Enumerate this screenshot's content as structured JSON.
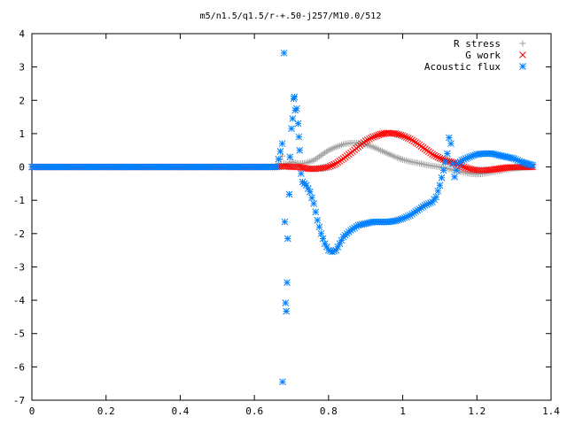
{
  "chart_data": {
    "type": "scatter",
    "title": "m5/n1.5/q1.5/r-+.50-j257/M10.0/512",
    "xlabel": "",
    "ylabel": "",
    "xlim": [
      0,
      1.4
    ],
    "ylim": [
      -7,
      4
    ],
    "xticks": [
      "0",
      "0.2",
      "0.4",
      "0.6",
      "0.8",
      "1",
      "1.2",
      "1.4"
    ],
    "yticks": [
      "4",
      "3",
      "2",
      "1",
      "0",
      "-1",
      "-2",
      "-3",
      "-4",
      "-5",
      "-6",
      "-7"
    ],
    "grid": false,
    "legend_position": "top-right",
    "series": [
      {
        "name": "R stress",
        "marker": "plus",
        "color": "#a0a0a0",
        "points": [
          [
            0,
            0
          ],
          [
            0.1,
            0
          ],
          [
            0.2,
            0
          ],
          [
            0.3,
            0
          ],
          [
            0.4,
            0
          ],
          [
            0.5,
            0
          ],
          [
            0.6,
            0
          ],
          [
            0.66,
            0
          ],
          [
            0.675,
            0.33
          ],
          [
            0.68,
            0.1
          ],
          [
            0.69,
            0.08
          ],
          [
            0.7,
            0.15
          ],
          [
            0.72,
            0.1
          ],
          [
            0.74,
            0.12
          ],
          [
            0.76,
            0.2
          ],
          [
            0.78,
            0.35
          ],
          [
            0.8,
            0.5
          ],
          [
            0.82,
            0.6
          ],
          [
            0.84,
            0.68
          ],
          [
            0.86,
            0.72
          ],
          [
            0.88,
            0.72
          ],
          [
            0.9,
            0.68
          ],
          [
            0.92,
            0.6
          ],
          [
            0.94,
            0.5
          ],
          [
            0.96,
            0.4
          ],
          [
            0.98,
            0.3
          ],
          [
            1.0,
            0.22
          ],
          [
            1.02,
            0.16
          ],
          [
            1.04,
            0.12
          ],
          [
            1.06,
            0.07
          ],
          [
            1.08,
            0.03
          ],
          [
            1.1,
            0.0
          ],
          [
            1.12,
            -0.05
          ],
          [
            1.14,
            -0.1
          ],
          [
            1.16,
            -0.15
          ],
          [
            1.18,
            -0.2
          ],
          [
            1.2,
            -0.22
          ],
          [
            1.22,
            -0.2
          ],
          [
            1.24,
            -0.16
          ],
          [
            1.26,
            -0.12
          ],
          [
            1.28,
            -0.08
          ],
          [
            1.3,
            -0.05
          ],
          [
            1.32,
            -0.02
          ],
          [
            1.35,
            0.0
          ]
        ]
      },
      {
        "name": "G work",
        "marker": "cross",
        "color": "#ff0000",
        "points": [
          [
            0,
            0
          ],
          [
            0.1,
            0
          ],
          [
            0.2,
            0
          ],
          [
            0.3,
            0
          ],
          [
            0.4,
            0
          ],
          [
            0.5,
            0
          ],
          [
            0.6,
            0
          ],
          [
            0.66,
            0
          ],
          [
            0.68,
            0.02
          ],
          [
            0.7,
            0.0
          ],
          [
            0.72,
            0.0
          ],
          [
            0.74,
            -0.05
          ],
          [
            0.76,
            -0.06
          ],
          [
            0.78,
            -0.04
          ],
          [
            0.8,
            0.0
          ],
          [
            0.82,
            0.1
          ],
          [
            0.84,
            0.25
          ],
          [
            0.86,
            0.42
          ],
          [
            0.88,
            0.6
          ],
          [
            0.9,
            0.78
          ],
          [
            0.92,
            0.9
          ],
          [
            0.94,
            0.98
          ],
          [
            0.96,
            1.02
          ],
          [
            0.98,
            1.0
          ],
          [
            1.0,
            0.94
          ],
          [
            1.02,
            0.84
          ],
          [
            1.04,
            0.7
          ],
          [
            1.06,
            0.54
          ],
          [
            1.08,
            0.38
          ],
          [
            1.1,
            0.26
          ],
          [
            1.12,
            0.18
          ],
          [
            1.14,
            0.12
          ],
          [
            1.16,
            0.02
          ],
          [
            1.18,
            -0.06
          ],
          [
            1.2,
            -0.1
          ],
          [
            1.22,
            -0.1
          ],
          [
            1.24,
            -0.08
          ],
          [
            1.26,
            -0.05
          ],
          [
            1.28,
            -0.02
          ],
          [
            1.3,
            -0.01
          ],
          [
            1.32,
            0.0
          ],
          [
            1.35,
            0.0
          ]
        ]
      },
      {
        "name": "Acoustic flux",
        "marker": "star",
        "color": "#0080ff",
        "points": [
          [
            0,
            0
          ],
          [
            0.1,
            0
          ],
          [
            0.2,
            0
          ],
          [
            0.3,
            0
          ],
          [
            0.4,
            0
          ],
          [
            0.5,
            0
          ],
          [
            0.6,
            0
          ],
          [
            0.66,
            0
          ],
          [
            0.675,
            0.7
          ],
          [
            0.676,
            -6.45
          ],
          [
            0.68,
            3.42
          ],
          [
            0.682,
            -1.65
          ],
          [
            0.684,
            -4.08
          ],
          [
            0.686,
            -4.33
          ],
          [
            0.688,
            -3.47
          ],
          [
            0.69,
            -2.15
          ],
          [
            0.694,
            -0.82
          ],
          [
            0.696,
            0.3
          ],
          [
            0.7,
            1.15
          ],
          [
            0.703,
            1.45
          ],
          [
            0.706,
            2.05
          ],
          [
            0.708,
            2.1
          ],
          [
            0.71,
            1.7
          ],
          [
            0.714,
            1.75
          ],
          [
            0.718,
            1.3
          ],
          [
            0.72,
            0.9
          ],
          [
            0.722,
            0.5
          ],
          [
            0.726,
            -0.2
          ],
          [
            0.73,
            -0.45
          ],
          [
            0.74,
            -0.55
          ],
          [
            0.75,
            -0.75
          ],
          [
            0.76,
            -1.1
          ],
          [
            0.77,
            -1.6
          ],
          [
            0.78,
            -2.0
          ],
          [
            0.79,
            -2.3
          ],
          [
            0.8,
            -2.5
          ],
          [
            0.81,
            -2.55
          ],
          [
            0.82,
            -2.5
          ],
          [
            0.83,
            -2.3
          ],
          [
            0.84,
            -2.1
          ],
          [
            0.86,
            -1.9
          ],
          [
            0.88,
            -1.75
          ],
          [
            0.9,
            -1.7
          ],
          [
            0.92,
            -1.65
          ],
          [
            0.94,
            -1.65
          ],
          [
            0.96,
            -1.65
          ],
          [
            0.98,
            -1.62
          ],
          [
            1.0,
            -1.55
          ],
          [
            1.02,
            -1.45
          ],
          [
            1.04,
            -1.3
          ],
          [
            1.06,
            -1.15
          ],
          [
            1.08,
            -1.05
          ],
          [
            1.09,
            -0.9
          ],
          [
            1.1,
            -0.55
          ],
          [
            1.11,
            -0.1
          ],
          [
            1.12,
            0.4
          ],
          [
            1.125,
            0.88
          ],
          [
            1.13,
            0.7
          ],
          [
            1.135,
            0.1
          ],
          [
            1.14,
            -0.3
          ],
          [
            1.145,
            -0.1
          ],
          [
            1.15,
            0.1
          ],
          [
            1.16,
            0.2
          ],
          [
            1.18,
            0.3
          ],
          [
            1.2,
            0.38
          ],
          [
            1.22,
            0.4
          ],
          [
            1.24,
            0.4
          ],
          [
            1.26,
            0.35
          ],
          [
            1.28,
            0.3
          ],
          [
            1.3,
            0.25
          ],
          [
            1.32,
            0.15
          ],
          [
            1.35,
            0.05
          ]
        ]
      }
    ]
  }
}
